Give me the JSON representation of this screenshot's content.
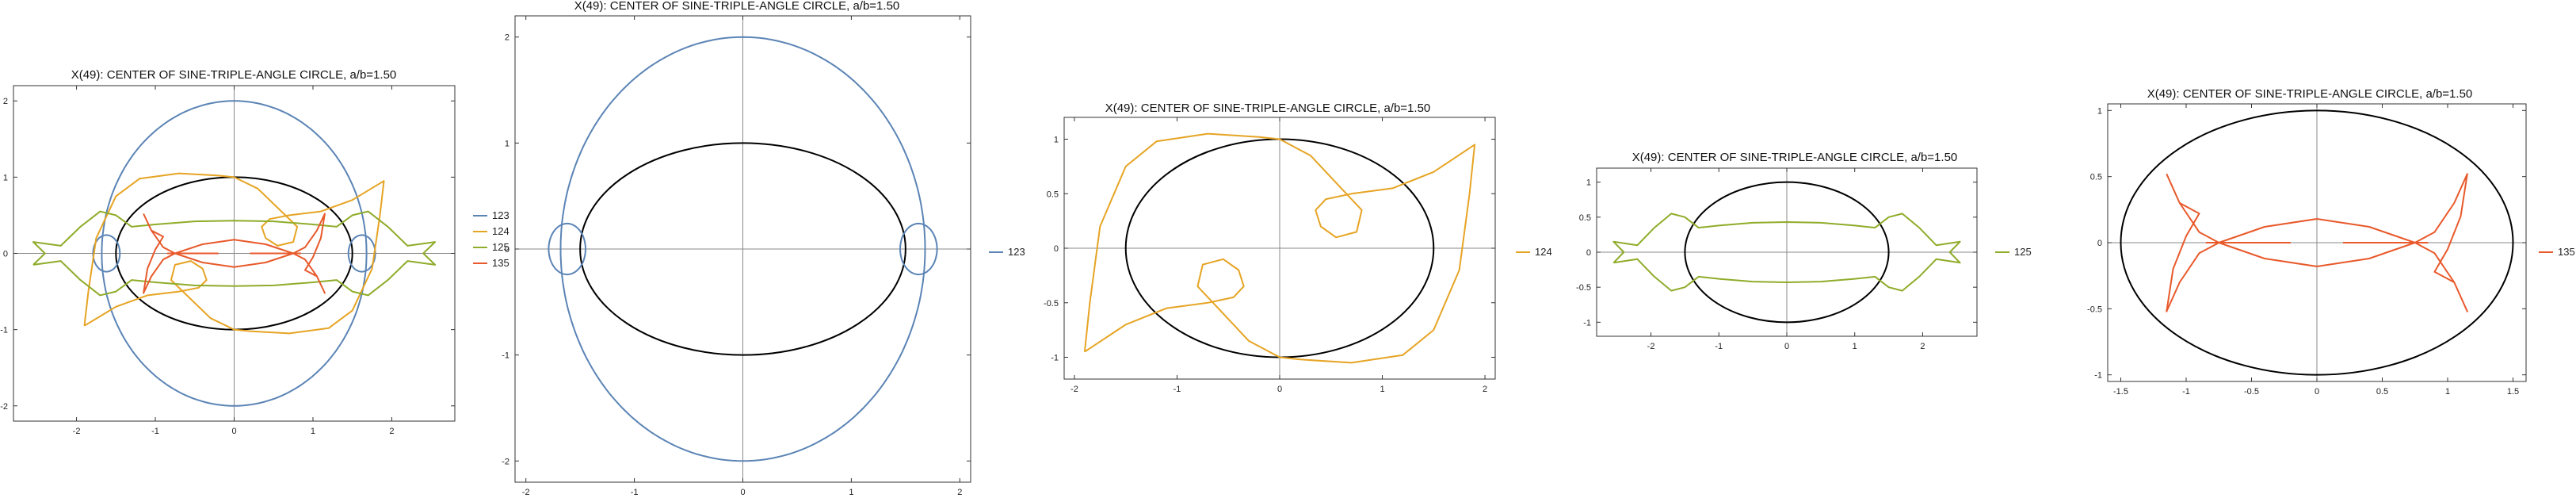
{
  "colors": {
    "c123": "#5b84b5",
    "c124": "#e6a424",
    "c125": "#8fac2a",
    "c135": "#e8592b",
    "ellipse": "#000000",
    "axis": "#888888",
    "frame": "#333333"
  },
  "chart_data": [
    {
      "type": "line",
      "title": "X(49): CENTER OF SINE-TRIPLE-ANGLE CIRCLE, a/b=1.50",
      "xlim": [
        -2.8,
        2.8
      ],
      "ylim": [
        -2.2,
        2.2
      ],
      "xticks": [
        -2,
        -1,
        0,
        1,
        2
      ],
      "yticks": [
        -2,
        -1,
        0,
        1,
        2
      ],
      "ellipse": {
        "a": 1.5,
        "b": 1
      },
      "legend": [
        "123",
        "124",
        "125",
        "135"
      ],
      "series": [
        {
          "name": "123",
          "shape": "loop-123"
        },
        {
          "name": "124",
          "shape": "loop-124"
        },
        {
          "name": "125",
          "shape": "loop-125"
        },
        {
          "name": "135",
          "shape": "loop-135"
        }
      ]
    },
    {
      "type": "line",
      "title": "X(49): CENTER OF SINE-TRIPLE-ANGLE CIRCLE, a/b=1.50",
      "xlim": [
        -2.1,
        2.1
      ],
      "ylim": [
        -2.2,
        2.2
      ],
      "xticks": [
        -2,
        -1,
        0,
        1,
        2
      ],
      "yticks": [
        -2,
        -1,
        0,
        1,
        2
      ],
      "ellipse": {
        "a": 1.5,
        "b": 1
      },
      "legend": [
        "123"
      ],
      "series": [
        {
          "name": "123",
          "shape": "loop-123"
        }
      ]
    },
    {
      "type": "line",
      "title": "X(49): CENTER OF SINE-TRIPLE-ANGLE CIRCLE, a/b=1.50",
      "xlim": [
        -2.1,
        2.1
      ],
      "ylim": [
        -1.2,
        1.2
      ],
      "xticks": [
        -2,
        -1,
        0,
        1,
        2
      ],
      "yticks": [
        -1.0,
        -0.5,
        0.0,
        0.5,
        1.0
      ],
      "ellipse": {
        "a": 1.5,
        "b": 1
      },
      "legend": [
        "124"
      ],
      "series": [
        {
          "name": "124",
          "shape": "loop-124"
        }
      ]
    },
    {
      "type": "line",
      "title": "X(49): CENTER OF SINE-TRIPLE-ANGLE CIRCLE, a/b=1.50",
      "xlim": [
        -2.8,
        2.8
      ],
      "ylim": [
        -1.2,
        1.2
      ],
      "xticks": [
        -2,
        -1,
        0,
        1,
        2
      ],
      "yticks": [
        -1.0,
        -0.5,
        0.0,
        0.5,
        1.0
      ],
      "ellipse": {
        "a": 1.5,
        "b": 1
      },
      "legend": [
        "125"
      ],
      "series": [
        {
          "name": "125",
          "shape": "loop-125"
        }
      ]
    },
    {
      "type": "line",
      "title": "X(49): CENTER OF SINE-TRIPLE-ANGLE CIRCLE, a/b=1.50",
      "xlim": [
        -1.6,
        1.6
      ],
      "ylim": [
        -1.05,
        1.05
      ],
      "xticks": [
        -1.5,
        -1.0,
        -0.5,
        0.0,
        0.5,
        1.0,
        1.5
      ],
      "yticks": [
        -1.0,
        -0.5,
        0.0,
        0.5,
        1.0
      ],
      "ellipse": {
        "a": 1.5,
        "b": 1
      },
      "legend": [
        "135"
      ],
      "series": [
        {
          "name": "135",
          "shape": "loop-135"
        }
      ]
    }
  ]
}
